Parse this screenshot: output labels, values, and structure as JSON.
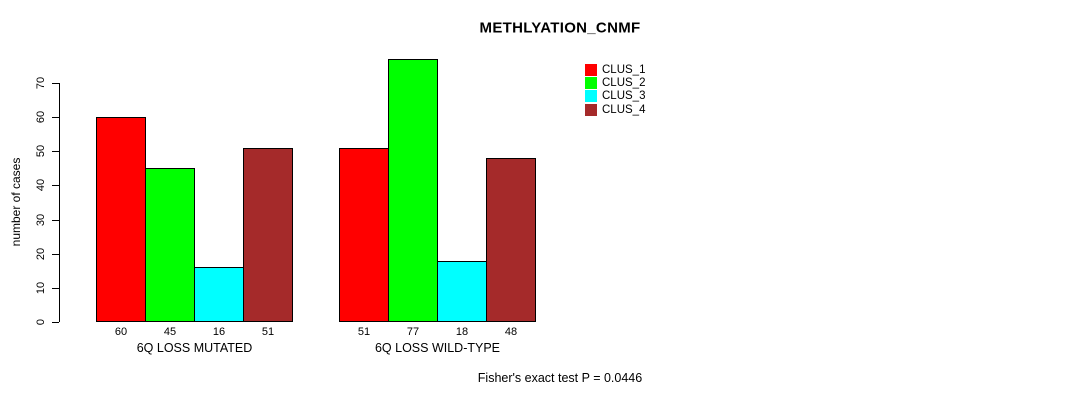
{
  "chart_data": {
    "type": "bar",
    "title": "METHLYATION_CNMF",
    "ylabel": "number of cases",
    "xlabel": "",
    "ylim": [
      0,
      70
    ],
    "yticks": [
      0,
      10,
      20,
      30,
      40,
      50,
      60,
      70
    ],
    "grid": false,
    "categories": [
      "6Q LOSS MUTATED",
      "6Q LOSS WILD-TYPE"
    ],
    "series": [
      {
        "name": "CLUS_1",
        "color": "#FF0000",
        "values": [
          60,
          51
        ]
      },
      {
        "name": "CLUS_2",
        "color": "#00FF00",
        "values": [
          45,
          77
        ]
      },
      {
        "name": "CLUS_3",
        "color": "#00FFFF",
        "values": [
          16,
          18
        ]
      },
      {
        "name": "CLUS_4",
        "color": "#A52A2A",
        "values": [
          51,
          48
        ]
      }
    ],
    "bar_value_labels": [
      [
        60,
        45,
        16,
        51
      ],
      [
        51,
        77,
        18,
        48
      ]
    ],
    "legend": {
      "position": "top-right",
      "entries": [
        "CLUS_1",
        "CLUS_2",
        "CLUS_3",
        "CLUS_4"
      ]
    },
    "annotation": "Fisher's exact test P = 0.0446"
  }
}
